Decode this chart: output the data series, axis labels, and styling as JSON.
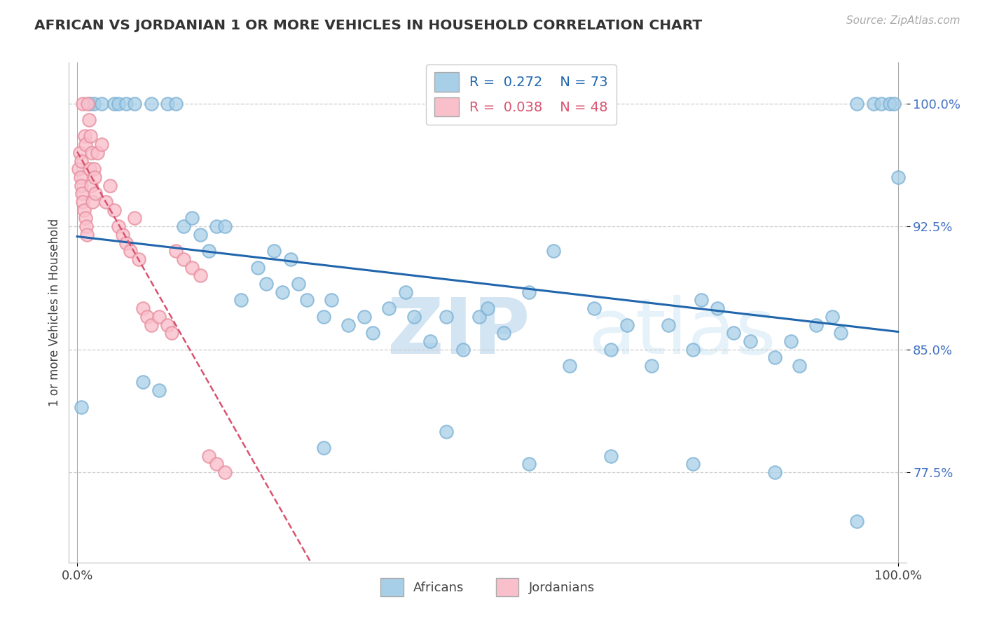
{
  "title": "AFRICAN VS JORDANIAN 1 OR MORE VEHICLES IN HOUSEHOLD CORRELATION CHART",
  "source_text": "Source: ZipAtlas.com",
  "ylabel": "1 or more Vehicles in Household",
  "xlim": [
    -1.0,
    101.0
  ],
  "ylim": [
    72.0,
    102.5
  ],
  "yticks": [
    77.5,
    85.0,
    92.5,
    100.0
  ],
  "xticks": [
    0.0,
    100.0
  ],
  "xticklabels": [
    "0.0%",
    "100.0%"
  ],
  "yticklabels": [
    "77.5%",
    "85.0%",
    "92.5%",
    "100.0%"
  ],
  "blue_R": 0.272,
  "blue_N": 73,
  "pink_R": 0.038,
  "pink_N": 48,
  "blue_color": "#a8cfe8",
  "blue_edge_color": "#7ab0d4",
  "pink_color": "#f9c0cc",
  "pink_edge_color": "#e8909f",
  "blue_line_color": "#2166ac",
  "pink_line_color": "#d9536f",
  "legend_label_blue": "Africans",
  "legend_label_pink": "Jordanians",
  "blue_scatter_x": [
    1.5,
    2.0,
    3.0,
    4.5,
    5.0,
    6.0,
    7.0,
    9.0,
    11.0,
    12.0,
    13.0,
    14.0,
    15.0,
    16.0,
    17.0,
    18.0,
    20.0,
    22.0,
    23.0,
    24.0,
    25.0,
    26.0,
    27.0,
    28.0,
    30.0,
    31.0,
    33.0,
    35.0,
    36.0,
    38.0,
    40.0,
    41.0,
    43.0,
    45.0,
    47.0,
    49.0,
    50.0,
    52.0,
    55.0,
    58.0,
    60.0,
    63.0,
    65.0,
    67.0,
    70.0,
    72.0,
    75.0,
    76.0,
    78.0,
    80.0,
    82.0,
    85.0,
    87.0,
    88.0,
    90.0,
    92.0,
    93.0,
    95.0,
    97.0,
    98.0,
    99.0,
    99.5,
    100.0,
    0.5,
    8.0,
    10.0,
    30.0,
    45.0,
    55.0,
    65.0,
    75.0,
    85.0,
    95.0
  ],
  "blue_scatter_y": [
    100.0,
    100.0,
    100.0,
    100.0,
    100.0,
    100.0,
    100.0,
    100.0,
    100.0,
    100.0,
    92.5,
    93.0,
    92.0,
    91.0,
    92.5,
    92.5,
    88.0,
    90.0,
    89.0,
    91.0,
    88.5,
    90.5,
    89.0,
    88.0,
    87.0,
    88.0,
    86.5,
    87.0,
    86.0,
    87.5,
    88.5,
    87.0,
    85.5,
    87.0,
    85.0,
    87.0,
    87.5,
    86.0,
    88.5,
    91.0,
    84.0,
    87.5,
    85.0,
    86.5,
    84.0,
    86.5,
    85.0,
    88.0,
    87.5,
    86.0,
    85.5,
    84.5,
    85.5,
    84.0,
    86.5,
    87.0,
    86.0,
    100.0,
    100.0,
    100.0,
    100.0,
    100.0,
    95.5,
    81.5,
    83.0,
    82.5,
    79.0,
    80.0,
    78.0,
    78.5,
    78.0,
    77.5,
    74.5
  ],
  "pink_scatter_x": [
    0.2,
    0.3,
    0.4,
    0.5,
    0.5,
    0.6,
    0.7,
    0.7,
    0.8,
    0.9,
    1.0,
    1.0,
    1.1,
    1.2,
    1.3,
    1.4,
    1.5,
    1.6,
    1.7,
    1.8,
    1.9,
    2.0,
    2.1,
    2.2,
    2.5,
    3.0,
    3.5,
    4.0,
    4.5,
    5.0,
    5.5,
    6.0,
    6.5,
    7.0,
    7.5,
    8.0,
    8.5,
    9.0,
    10.0,
    11.0,
    11.5,
    12.0,
    13.0,
    14.0,
    15.0,
    16.0,
    17.0,
    18.0
  ],
  "pink_scatter_y": [
    96.0,
    97.0,
    95.5,
    95.0,
    96.5,
    94.5,
    94.0,
    100.0,
    93.5,
    98.0,
    93.0,
    97.5,
    92.5,
    92.0,
    100.0,
    99.0,
    96.0,
    98.0,
    95.0,
    97.0,
    94.0,
    96.0,
    95.5,
    94.5,
    97.0,
    97.5,
    94.0,
    95.0,
    93.5,
    92.5,
    92.0,
    91.5,
    91.0,
    93.0,
    90.5,
    87.5,
    87.0,
    86.5,
    87.0,
    86.5,
    86.0,
    91.0,
    90.5,
    90.0,
    89.5,
    78.5,
    78.0,
    77.5
  ]
}
